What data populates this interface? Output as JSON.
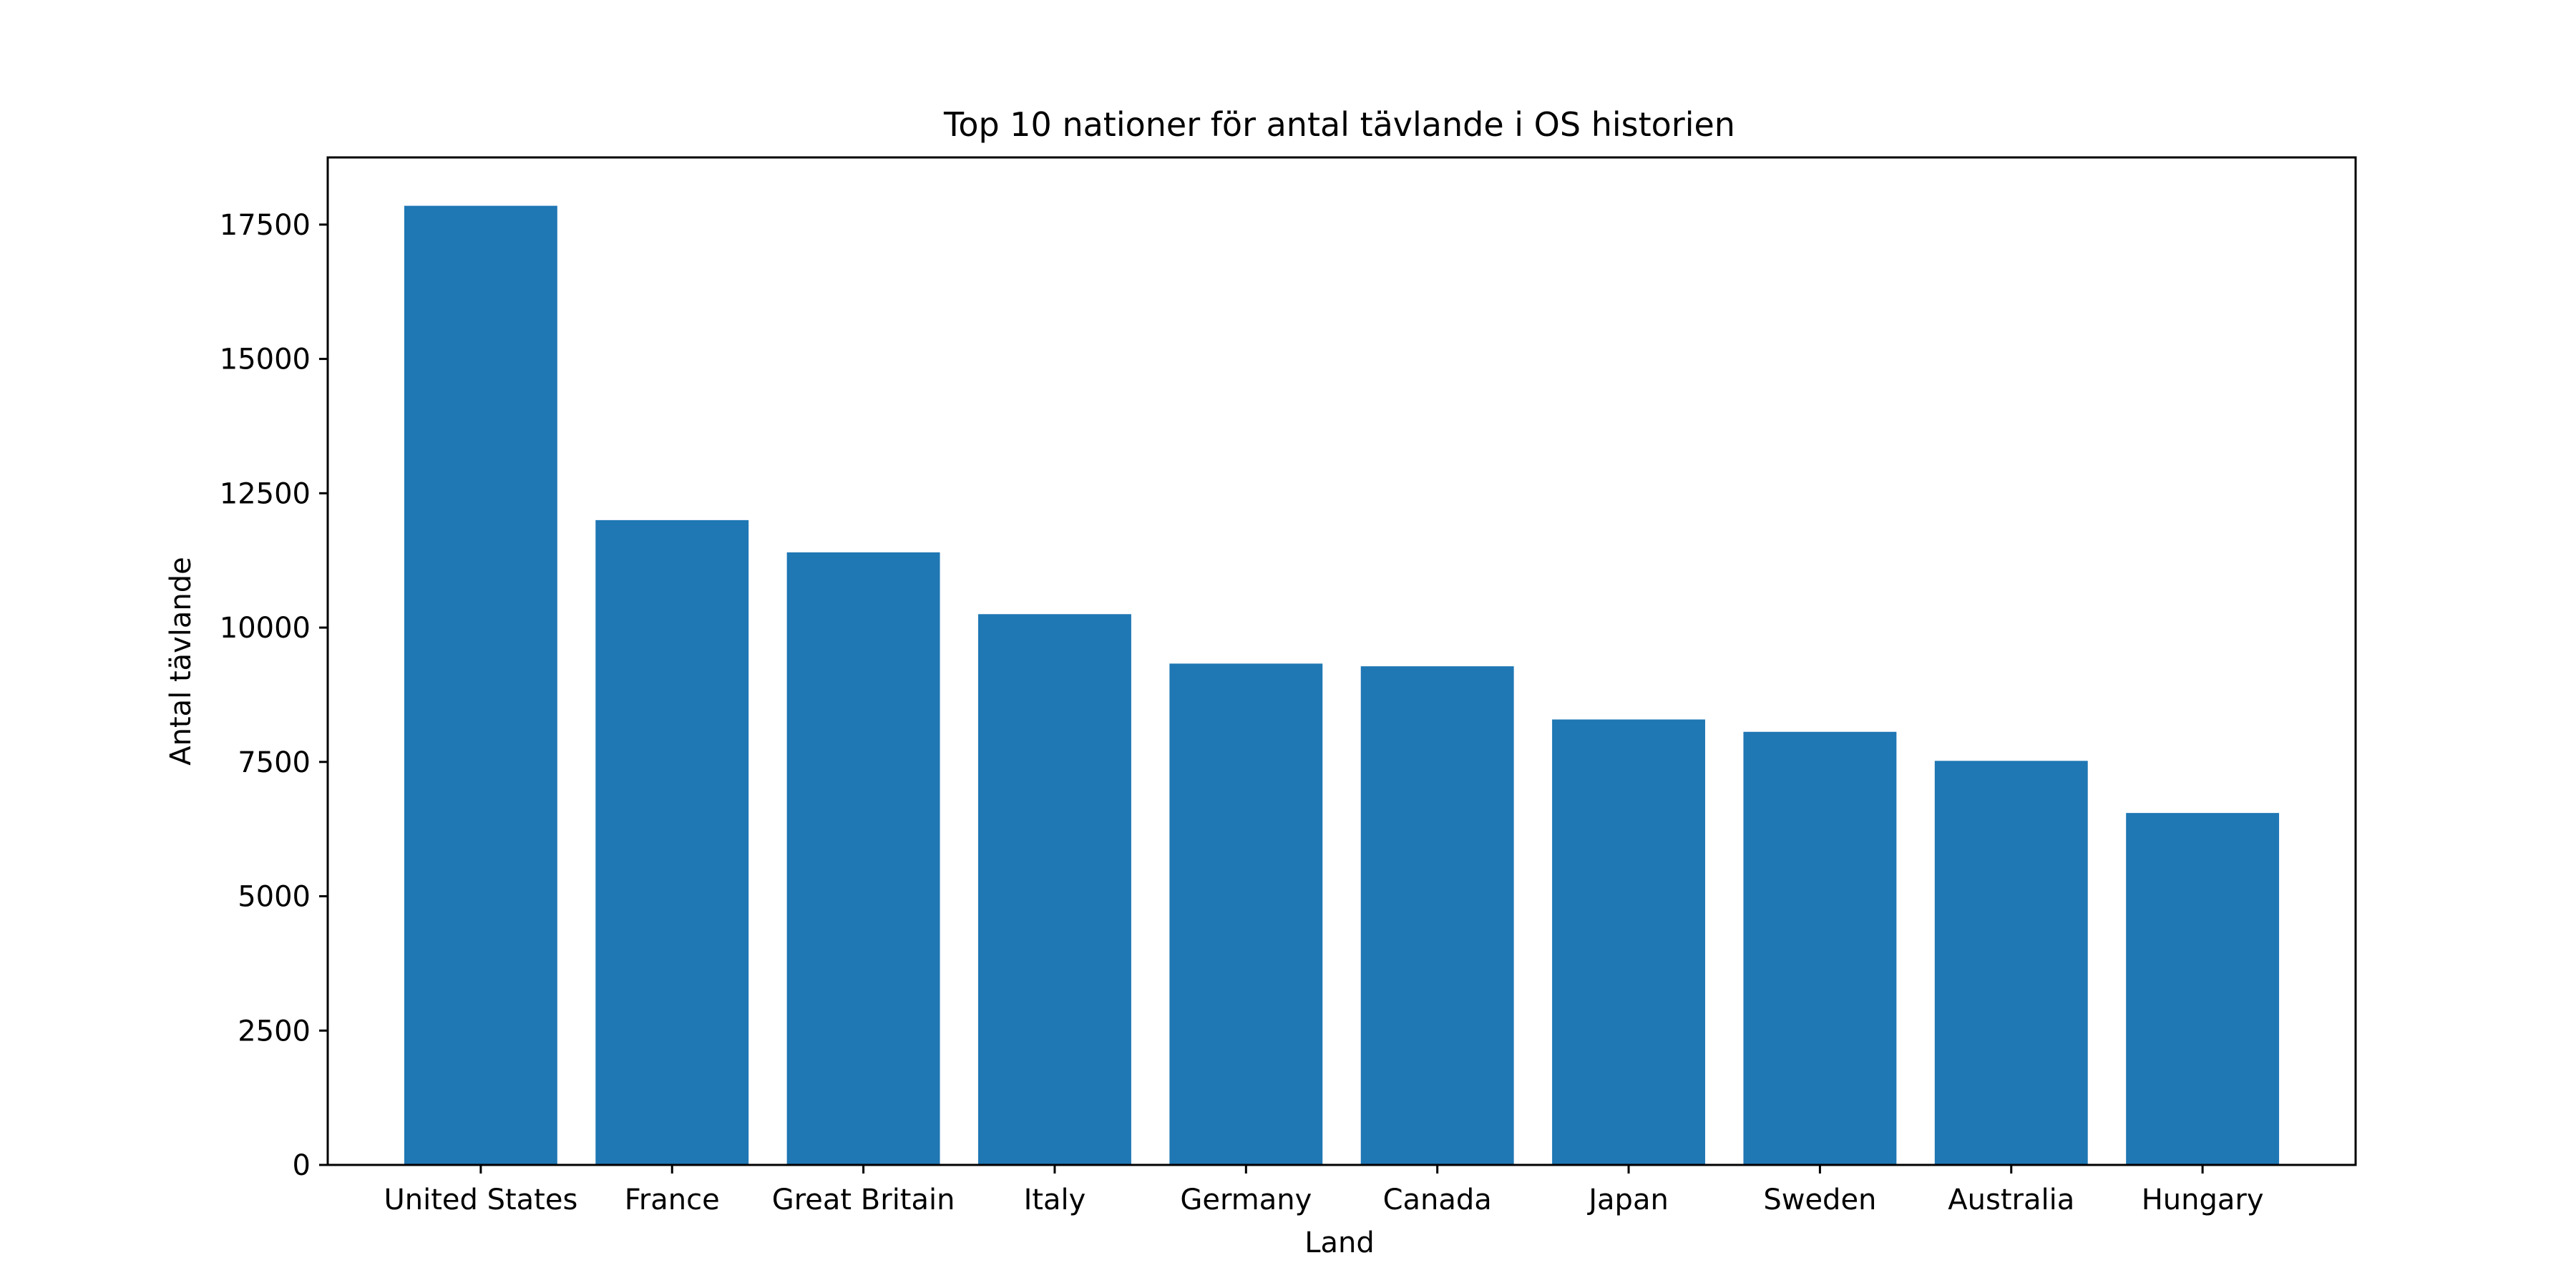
{
  "chart_data": {
    "type": "bar",
    "title": "Top 10 nationer för antal tävlande i OS historien",
    "xlabel": "Land",
    "ylabel": "Antal tävlande",
    "categories": [
      "United States",
      "France",
      "Great Britain",
      "Italy",
      "Germany",
      "Canada",
      "Japan",
      "Sweden",
      "Australia",
      "Hungary"
    ],
    "values": [
      17850,
      12000,
      11400,
      10250,
      9330,
      9280,
      8290,
      8060,
      7520,
      6550
    ],
    "ylim": [
      0,
      18750
    ],
    "yticks": [
      0,
      2500,
      5000,
      7500,
      10000,
      12500,
      15000,
      17500
    ],
    "ytick_labels": [
      "0",
      "2500",
      "5000",
      "7500",
      "10000",
      "12500",
      "15000",
      "17500"
    ],
    "bar_color": "#1f77b4",
    "grid": false,
    "legend": "none"
  }
}
